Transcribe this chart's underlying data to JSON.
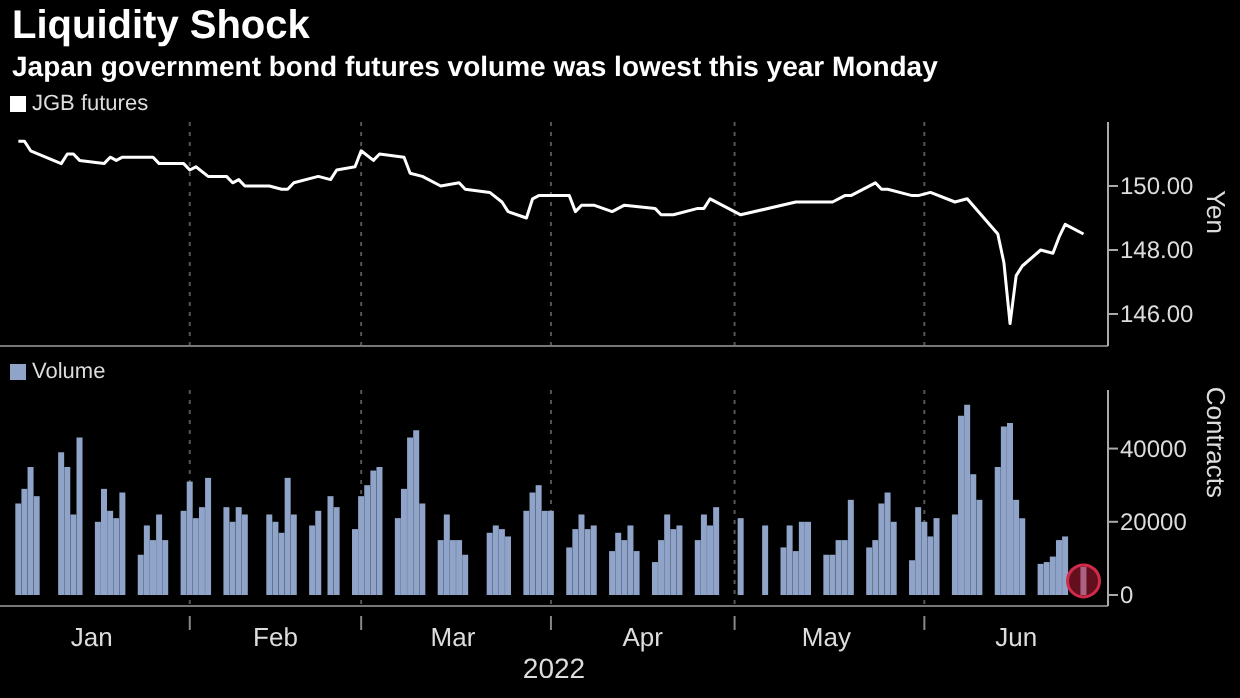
{
  "chart_data": [
    {
      "type": "line",
      "title": "Liquidity Shock",
      "subtitle": "Japan government bond futures volume was lowest this year Monday",
      "ylabel": "Yen",
      "legend": "top left",
      "grid": true,
      "tick_labels": "y",
      "xlim": [
        "2022-01-01",
        "2022-07-01"
      ],
      "xticks": [
        {
          "value": "2022-02-01",
          "label": null
        },
        {
          "value": "2022-03-01",
          "label": null
        },
        {
          "value": "2022-04-01",
          "label": null
        },
        {
          "value": "2022-05-01",
          "label": null
        },
        {
          "value": "2022-06-01",
          "label": null
        }
      ],
      "ylim": [
        145,
        152
      ],
      "yticks": [
        {
          "value": 146,
          "label": "146.00"
        },
        {
          "value": 148,
          "label": "148.00"
        },
        {
          "value": 150,
          "label": "150.00"
        }
      ],
      "series": [
        {
          "name": "JGB futures",
          "color": "#ffffff",
          "x": [
            "2022-01-04",
            "2022-01-05",
            "2022-01-06",
            "2022-01-11",
            "2022-01-12",
            "2022-01-13",
            "2022-01-14",
            "2022-01-18",
            "2022-01-19",
            "2022-01-20",
            "2022-01-21",
            "2022-01-26",
            "2022-01-27",
            "2022-01-31",
            "2022-02-01",
            "2022-02-02",
            "2022-02-04",
            "2022-02-07",
            "2022-02-08",
            "2022-02-09",
            "2022-02-10",
            "2022-02-14",
            "2022-02-16",
            "2022-02-17",
            "2022-02-18",
            "2022-02-22",
            "2022-02-24",
            "2022-02-25",
            "2022-02-28",
            "2022-03-01",
            "2022-03-03",
            "2022-03-04",
            "2022-03-08",
            "2022-03-09",
            "2022-03-11",
            "2022-03-14",
            "2022-03-17",
            "2022-03-18",
            "2022-03-22",
            "2022-03-24",
            "2022-03-25",
            "2022-03-28",
            "2022-03-29",
            "2022-03-30",
            "2022-04-04",
            "2022-04-05",
            "2022-04-06",
            "2022-04-08",
            "2022-04-11",
            "2022-04-13",
            "2022-04-18",
            "2022-04-19",
            "2022-04-21",
            "2022-04-25",
            "2022-04-26",
            "2022-04-27",
            "2022-05-02",
            "2022-05-11",
            "2022-05-13",
            "2022-05-17",
            "2022-05-19",
            "2022-05-20",
            "2022-05-24",
            "2022-05-25",
            "2022-05-26",
            "2022-05-30",
            "2022-05-31",
            "2022-06-02",
            "2022-06-06",
            "2022-06-08",
            "2022-06-13",
            "2022-06-14",
            "2022-06-15",
            "2022-06-16",
            "2022-06-17",
            "2022-06-20",
            "2022-06-22",
            "2022-06-23",
            "2022-06-24",
            "2022-06-27"
          ],
          "values": [
            151.4,
            151.4,
            151.1,
            150.7,
            151.0,
            151.0,
            150.8,
            150.7,
            150.9,
            150.8,
            150.9,
            150.9,
            150.7,
            150.7,
            150.5,
            150.6,
            150.3,
            150.3,
            150.1,
            150.2,
            150.0,
            150.0,
            149.9,
            149.9,
            150.1,
            150.3,
            150.2,
            150.5,
            150.6,
            151.1,
            150.8,
            151.0,
            150.9,
            150.4,
            150.3,
            150.0,
            150.1,
            149.9,
            149.8,
            149.5,
            149.2,
            149.0,
            149.6,
            149.7,
            149.7,
            149.2,
            149.4,
            149.4,
            149.2,
            149.4,
            149.3,
            149.1,
            149.1,
            149.3,
            149.3,
            149.6,
            149.1,
            149.5,
            149.5,
            149.5,
            149.7,
            149.7,
            150.1,
            149.9,
            149.9,
            149.7,
            149.7,
            149.8,
            149.5,
            149.6,
            148.5,
            147.6,
            145.7,
            147.2,
            147.5,
            148.0,
            147.9,
            148.4,
            148.8,
            148.5
          ]
        }
      ]
    },
    {
      "type": "bar",
      "ylabel": "Contracts",
      "xlabel": "2022",
      "legend": "top left",
      "grid": true,
      "xlim": [
        "2022-01-01",
        "2022-07-01"
      ],
      "xticks": [
        {
          "value": "2022-01-16",
          "label": "Jan"
        },
        {
          "value": "2022-02-01",
          "label": null
        },
        {
          "value": "2022-02-15",
          "label": "Feb"
        },
        {
          "value": "2022-03-01",
          "label": null
        },
        {
          "value": "2022-03-16",
          "label": "Mar"
        },
        {
          "value": "2022-04-01",
          "label": null
        },
        {
          "value": "2022-04-16",
          "label": "Apr"
        },
        {
          "value": "2022-05-01",
          "label": null
        },
        {
          "value": "2022-05-16",
          "label": "May"
        },
        {
          "value": "2022-06-01",
          "label": null
        },
        {
          "value": "2022-06-16",
          "label": "Jun"
        }
      ],
      "ylim": [
        -3000,
        56000
      ],
      "yticks": [
        0,
        20000,
        40000
      ],
      "series": [
        {
          "name": "Volume",
          "color": "#8fa4c8",
          "x": [
            "2022-01-04",
            "2022-01-05",
            "2022-01-06",
            "2022-01-07",
            "2022-01-11",
            "2022-01-12",
            "2022-01-13",
            "2022-01-14",
            "2022-01-17",
            "2022-01-18",
            "2022-01-19",
            "2022-01-20",
            "2022-01-21",
            "2022-01-24",
            "2022-01-25",
            "2022-01-26",
            "2022-01-27",
            "2022-01-28",
            "2022-01-31",
            "2022-02-01",
            "2022-02-02",
            "2022-02-03",
            "2022-02-04",
            "2022-02-07",
            "2022-02-08",
            "2022-02-09",
            "2022-02-10",
            "2022-02-14",
            "2022-02-15",
            "2022-02-16",
            "2022-02-17",
            "2022-02-18",
            "2022-02-21",
            "2022-02-22",
            "2022-02-24",
            "2022-02-25",
            "2022-02-28",
            "2022-03-01",
            "2022-03-02",
            "2022-03-03",
            "2022-03-04",
            "2022-03-07",
            "2022-03-08",
            "2022-03-09",
            "2022-03-10",
            "2022-03-11",
            "2022-03-14",
            "2022-03-15",
            "2022-03-16",
            "2022-03-17",
            "2022-03-18",
            "2022-03-22",
            "2022-03-23",
            "2022-03-24",
            "2022-03-25",
            "2022-03-28",
            "2022-03-29",
            "2022-03-30",
            "2022-03-31",
            "2022-04-01",
            "2022-04-04",
            "2022-04-05",
            "2022-04-06",
            "2022-04-07",
            "2022-04-08",
            "2022-04-11",
            "2022-04-12",
            "2022-04-13",
            "2022-04-14",
            "2022-04-15",
            "2022-04-18",
            "2022-04-19",
            "2022-04-20",
            "2022-04-21",
            "2022-04-22",
            "2022-04-25",
            "2022-04-26",
            "2022-04-27",
            "2022-04-28",
            "2022-05-02",
            "2022-05-06",
            "2022-05-09",
            "2022-05-10",
            "2022-05-11",
            "2022-05-12",
            "2022-05-13",
            "2022-05-16",
            "2022-05-17",
            "2022-05-18",
            "2022-05-19",
            "2022-05-20",
            "2022-05-23",
            "2022-05-24",
            "2022-05-25",
            "2022-05-26",
            "2022-05-27",
            "2022-05-30",
            "2022-05-31",
            "2022-06-01",
            "2022-06-02",
            "2022-06-03",
            "2022-06-06",
            "2022-06-07",
            "2022-06-08",
            "2022-06-09",
            "2022-06-10",
            "2022-06-13",
            "2022-06-14",
            "2022-06-15",
            "2022-06-16",
            "2022-06-17",
            "2022-06-20",
            "2022-06-21",
            "2022-06-22",
            "2022-06-23",
            "2022-06-24",
            "2022-06-27"
          ],
          "values": [
            25000,
            29000,
            35000,
            27000,
            39000,
            35000,
            22000,
            43000,
            20000,
            29000,
            23000,
            21000,
            28000,
            11000,
            19000,
            15000,
            22000,
            15000,
            23000,
            31000,
            21000,
            24000,
            32000,
            24000,
            20000,
            24000,
            22000,
            22000,
            20000,
            17000,
            32000,
            22000,
            19000,
            23000,
            27000,
            24000,
            18000,
            27000,
            30000,
            34000,
            35000,
            21000,
            29000,
            43000,
            45000,
            25000,
            15000,
            22000,
            15000,
            15000,
            11000,
            17000,
            19000,
            18000,
            16000,
            23000,
            28000,
            30000,
            23000,
            23000,
            13000,
            18000,
            22000,
            18000,
            19000,
            12000,
            17000,
            15000,
            19000,
            12000,
            9000,
            15000,
            22000,
            18000,
            19000,
            15000,
            22000,
            19000,
            24000,
            21000,
            19000,
            13000,
            19000,
            12000,
            20000,
            20000,
            11000,
            11000,
            15000,
            15000,
            26000,
            13000,
            15000,
            25000,
            28000,
            20000,
            9500,
            24000,
            20000,
            16000,
            21000,
            22000,
            49000,
            52000,
            33000,
            26000,
            35000,
            46000,
            47000,
            26000,
            21000,
            8500,
            9000,
            10500,
            15000,
            16000,
            7700
          ]
        }
      ]
    }
  ]
}
